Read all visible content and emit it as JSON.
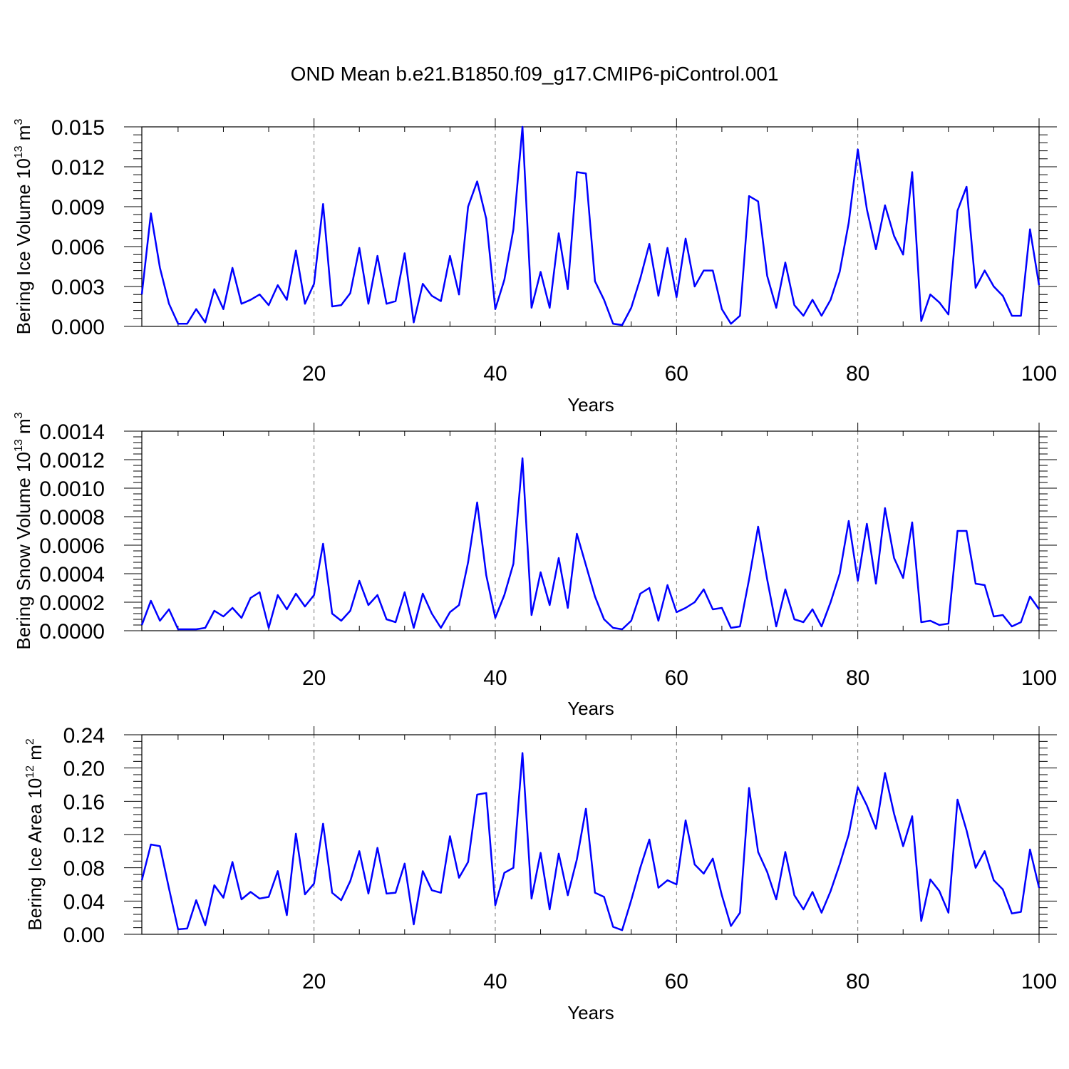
{
  "figure": {
    "title": "OND Mean b.e21.B1850.f09_g17.CMIP6-piControl.001",
    "line_color": "#0000ff"
  },
  "chart_data": [
    {
      "type": "line",
      "title": "OND Mean b.e21.B1850.f09_g17.CMIP6-piControl.001",
      "xlabel": "Years",
      "ylabel": "Bering Ice Volume",
      "unit_base": "10",
      "unit_exp": "13",
      "unit_m": " m",
      "unit_pow": "3",
      "xlim": [
        1,
        100
      ],
      "ylim": [
        0,
        0.015
      ],
      "grid": "vertical dashed",
      "xtick_values": [
        20,
        40,
        60,
        80,
        100
      ],
      "xtick_labels": [
        "20",
        "40",
        "60",
        "80",
        "100"
      ],
      "ytick_values": [
        0,
        0.003,
        0.006,
        0.009,
        0.012,
        0.015
      ],
      "ytick_labels": [
        "0.000",
        "0.003",
        "0.006",
        "0.009",
        "0.012",
        "0.015"
      ],
      "series": [
        {
          "name": "Bering Ice Volume",
          "x_start": 1,
          "values": [
            0.0024,
            0.0085,
            0.0044,
            0.0017,
            0.0002,
            0.0002,
            0.0013,
            0.0003,
            0.0028,
            0.0013,
            0.0044,
            0.0017,
            0.002,
            0.0024,
            0.0016,
            0.0031,
            0.002,
            0.0057,
            0.0017,
            0.0032,
            0.0092,
            0.0015,
            0.0016,
            0.0025,
            0.0059,
            0.0017,
            0.0053,
            0.0017,
            0.0019,
            0.0055,
            0.0003,
            0.0032,
            0.0023,
            0.0019,
            0.0053,
            0.0024,
            0.009,
            0.0109,
            0.0081,
            0.0013,
            0.0035,
            0.0073,
            0.015,
            0.0014,
            0.0041,
            0.0014,
            0.007,
            0.0028,
            0.0116,
            0.0115,
            0.0034,
            0.002,
            0.0002,
            0.0001,
            0.0014,
            0.0036,
            0.0062,
            0.0023,
            0.0059,
            0.0022,
            0.0066,
            0.003,
            0.0042,
            0.0042,
            0.0013,
            0.0002,
            0.0008,
            0.0098,
            0.0094,
            0.0038,
            0.0014,
            0.0048,
            0.0016,
            0.0008,
            0.002,
            0.0008,
            0.002,
            0.0041,
            0.0078,
            0.0133,
            0.0088,
            0.0058,
            0.0091,
            0.0068,
            0.0054,
            0.0116,
            0.0004,
            0.0024,
            0.0018,
            0.0009,
            0.0087,
            0.0105,
            0.0029,
            0.0042,
            0.003,
            0.0023,
            0.0008,
            0.0008,
            0.0073,
            0.0031
          ]
        }
      ]
    },
    {
      "type": "line",
      "xlabel": "Years",
      "ylabel": "Bering Snow Volume",
      "unit_base": "10",
      "unit_exp": "13",
      "unit_m": " m",
      "unit_pow": "3",
      "xlim": [
        1,
        100
      ],
      "ylim": [
        0,
        0.0014
      ],
      "grid": "vertical dashed",
      "xtick_values": [
        20,
        40,
        60,
        80,
        100
      ],
      "xtick_labels": [
        "20",
        "40",
        "60",
        "80",
        "100"
      ],
      "ytick_values": [
        0,
        0.0002,
        0.0004,
        0.0006,
        0.0008,
        0.001,
        0.0012,
        0.0014
      ],
      "ytick_labels": [
        "0.0000",
        "0.0002",
        "0.0004",
        "0.0006",
        "0.0008",
        "0.0010",
        "0.0012",
        "0.0014"
      ],
      "series": [
        {
          "name": "Bering Snow Volume",
          "x_start": 1,
          "values": [
            4e-05,
            0.00021,
            7e-05,
            0.00015,
            1e-05,
            1e-05,
            1e-05,
            2e-05,
            0.00014,
            0.0001,
            0.00016,
            9e-05,
            0.00023,
            0.00027,
            2e-05,
            0.00025,
            0.00015,
            0.00026,
            0.00017,
            0.00025,
            0.00061,
            0.00012,
            7e-05,
            0.00014,
            0.00035,
            0.00018,
            0.00025,
            8e-05,
            6e-05,
            0.00027,
            2e-05,
            0.00026,
            0.00012,
            2e-05,
            0.00013,
            0.00018,
            0.00048,
            0.0009,
            0.00039,
            9e-05,
            0.00025,
            0.00047,
            0.00121,
            0.00011,
            0.00041,
            0.00018,
            0.00051,
            0.00016,
            0.00068,
            0.00046,
            0.00024,
            8e-05,
            2e-05,
            1e-05,
            7e-05,
            0.00026,
            0.0003,
            7e-05,
            0.00032,
            0.00013,
            0.00016,
            0.0002,
            0.00029,
            0.00015,
            0.00016,
            2e-05,
            3e-05,
            0.00036,
            0.00073,
            0.00036,
            3e-05,
            0.00029,
            8e-05,
            6e-05,
            0.00015,
            3e-05,
            0.0002,
            0.0004,
            0.00077,
            0.00035,
            0.00075,
            0.00033,
            0.00086,
            0.00051,
            0.00037,
            0.00076,
            6e-05,
            7e-05,
            4e-05,
            5e-05,
            0.0007,
            0.0007,
            0.00033,
            0.00032,
            0.0001,
            0.00011,
            3e-05,
            6e-05,
            0.00024,
            0.00015
          ]
        }
      ]
    },
    {
      "type": "line",
      "xlabel": "Years",
      "ylabel": "Bering Ice Area",
      "unit_base": "10",
      "unit_exp": "12",
      "unit_m": " m",
      "unit_pow": "2",
      "xlim": [
        1,
        100
      ],
      "ylim": [
        0,
        0.24
      ],
      "grid": "vertical dashed",
      "xtick_values": [
        20,
        40,
        60,
        80,
        100
      ],
      "xtick_labels": [
        "20",
        "40",
        "60",
        "80",
        "100"
      ],
      "ytick_values": [
        0,
        0.04,
        0.08,
        0.12,
        0.16,
        0.2,
        0.24
      ],
      "ytick_labels": [
        "0.00",
        "0.04",
        "0.08",
        "0.12",
        "0.16",
        "0.20",
        "0.24"
      ],
      "series": [
        {
          "name": "Bering Ice Area",
          "x_start": 1,
          "values": [
            0.065,
            0.108,
            0.106,
            0.055,
            0.006,
            0.007,
            0.041,
            0.011,
            0.059,
            0.044,
            0.087,
            0.042,
            0.051,
            0.043,
            0.045,
            0.076,
            0.023,
            0.121,
            0.048,
            0.061,
            0.133,
            0.05,
            0.041,
            0.064,
            0.1,
            0.049,
            0.104,
            0.049,
            0.05,
            0.085,
            0.012,
            0.076,
            0.053,
            0.05,
            0.118,
            0.068,
            0.087,
            0.168,
            0.17,
            0.035,
            0.074,
            0.08,
            0.218,
            0.043,
            0.098,
            0.03,
            0.097,
            0.047,
            0.09,
            0.151,
            0.05,
            0.045,
            0.009,
            0.005,
            0.041,
            0.08,
            0.114,
            0.056,
            0.065,
            0.06,
            0.137,
            0.084,
            0.073,
            0.091,
            0.047,
            0.01,
            0.026,
            0.176,
            0.099,
            0.075,
            0.042,
            0.099,
            0.047,
            0.03,
            0.051,
            0.026,
            0.052,
            0.084,
            0.12,
            0.177,
            0.155,
            0.127,
            0.194,
            0.145,
            0.106,
            0.142,
            0.016,
            0.066,
            0.052,
            0.026,
            0.162,
            0.125,
            0.08,
            0.1,
            0.065,
            0.054,
            0.025,
            0.027,
            0.102,
            0.056
          ]
        }
      ]
    }
  ]
}
